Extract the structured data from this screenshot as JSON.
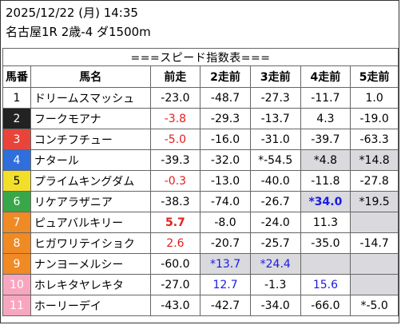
{
  "header": {
    "datetime": "2025/12/22 (月) 14:35",
    "race": "名古屋1R 2歳-4 ダ1500m"
  },
  "table": {
    "title": "===スピード指数表===",
    "columns": [
      "馬番",
      "馬名",
      "前走",
      "2走前",
      "3走前",
      "4走前",
      "5走前"
    ],
    "frame_colors": {
      "1": {
        "bg": "#ffffff",
        "fg": "#000000"
      },
      "2": {
        "bg": "#222222",
        "fg": "#ffffff"
      },
      "3": {
        "bg": "#e8443a",
        "fg": "#ffffff"
      },
      "4": {
        "bg": "#2f6fdc",
        "fg": "#ffffff"
      },
      "5": {
        "bg": "#f2df2a",
        "fg": "#000000"
      },
      "6": {
        "bg": "#3aa64a",
        "fg": "#ffffff"
      },
      "7": {
        "bg": "#f08a24",
        "fg": "#ffffff"
      },
      "8": {
        "bg": "#f8a6c0",
        "fg": "#ffffff"
      }
    },
    "rows": [
      {
        "num": "1",
        "frame": "1",
        "name": "ドリームスマッシュ",
        "cells": [
          {
            "v": "-23.0"
          },
          {
            "v": "-48.7"
          },
          {
            "v": "-27.3"
          },
          {
            "v": "-11.7"
          },
          {
            "v": "1.0"
          }
        ]
      },
      {
        "num": "2",
        "frame": "2",
        "name": "フークモアナ",
        "cells": [
          {
            "v": "-3.8",
            "c": "red"
          },
          {
            "v": "-29.3"
          },
          {
            "v": "-13.7"
          },
          {
            "v": "4.3"
          },
          {
            "v": "-19.0"
          }
        ]
      },
      {
        "num": "3",
        "frame": "3",
        "name": "コンチフチュー",
        "cells": [
          {
            "v": "-5.0",
            "c": "red"
          },
          {
            "v": "-16.0"
          },
          {
            "v": "-31.0"
          },
          {
            "v": "-39.7"
          },
          {
            "v": "-63.3"
          }
        ]
      },
      {
        "num": "4",
        "frame": "4",
        "name": "ナタール",
        "cells": [
          {
            "v": "-39.3"
          },
          {
            "v": "-32.0"
          },
          {
            "v": "*-54.5"
          },
          {
            "v": "*4.8",
            "s": true
          },
          {
            "v": "*14.8",
            "s": true
          }
        ]
      },
      {
        "num": "5",
        "frame": "5",
        "name": "プライムキングダム",
        "cells": [
          {
            "v": "-0.3",
            "c": "red"
          },
          {
            "v": "-13.0"
          },
          {
            "v": "-40.0"
          },
          {
            "v": "-11.8"
          },
          {
            "v": "-27.8"
          }
        ]
      },
      {
        "num": "6",
        "frame": "6",
        "name": "リケアラザニア",
        "cells": [
          {
            "v": "-38.3"
          },
          {
            "v": "-74.0"
          },
          {
            "v": "-26.7"
          },
          {
            "v": "*34.0",
            "c": "blue",
            "b": true,
            "s": true
          },
          {
            "v": "*19.5",
            "s": true
          }
        ]
      },
      {
        "num": "7",
        "frame": "7",
        "name": "ピュアバルキリー",
        "cells": [
          {
            "v": "5.7",
            "c": "red",
            "b": true
          },
          {
            "v": "-8.0"
          },
          {
            "v": "-24.0"
          },
          {
            "v": "11.3"
          },
          {
            "v": "",
            "s": true
          }
        ]
      },
      {
        "num": "8",
        "frame": "7",
        "name": "ヒガワリテイショク",
        "cells": [
          {
            "v": "2.6",
            "c": "red"
          },
          {
            "v": "-20.7"
          },
          {
            "v": "-25.7"
          },
          {
            "v": "-35.0"
          },
          {
            "v": "-14.7"
          }
        ]
      },
      {
        "num": "9",
        "frame": "7",
        "name": "ナンヨーメルシー",
        "cells": [
          {
            "v": "-60.0"
          },
          {
            "v": "*13.7",
            "c": "blue",
            "s": true
          },
          {
            "v": "*24.4",
            "c": "blue",
            "s": true
          },
          {
            "v": "",
            "s": true
          },
          {
            "v": "",
            "s": true
          }
        ]
      },
      {
        "num": "10",
        "frame": "8",
        "name": "ホレキタヤレキタ",
        "cells": [
          {
            "v": "-27.0"
          },
          {
            "v": "12.7",
            "c": "blue"
          },
          {
            "v": "-1.3"
          },
          {
            "v": "15.6",
            "c": "blue"
          },
          {
            "v": "",
            "s": true
          }
        ]
      },
      {
        "num": "11",
        "frame": "8",
        "name": "ホーリーデイ",
        "cells": [
          {
            "v": "-43.0"
          },
          {
            "v": "-42.7"
          },
          {
            "v": "-34.0"
          },
          {
            "v": "-66.0"
          },
          {
            "v": "*-5.0"
          }
        ]
      }
    ]
  }
}
